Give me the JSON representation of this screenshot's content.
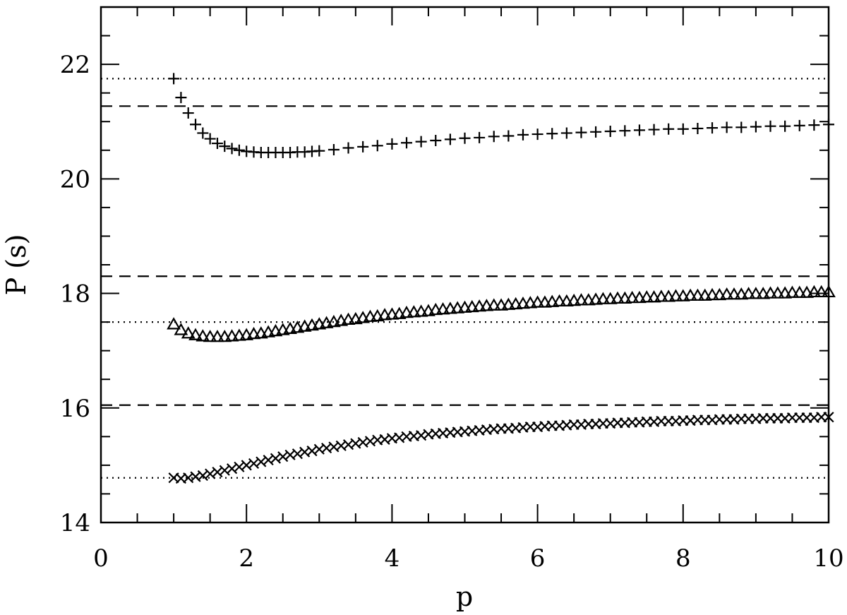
{
  "chart_data": {
    "type": "scatter",
    "title": "",
    "xlabel": "p",
    "ylabel": "P (s)",
    "xlim": [
      0,
      10
    ],
    "ylim": [
      14,
      23
    ],
    "xticks": [
      0,
      2,
      4,
      6,
      8,
      10
    ],
    "xtick_labels": [
      "0",
      "2",
      "4",
      "6",
      "8",
      "10"
    ],
    "yticks": [
      14,
      16,
      18,
      20,
      22
    ],
    "ytick_labels": [
      "14",
      "16",
      "18",
      "20",
      "22"
    ],
    "grid": false,
    "legend": "none",
    "reference_lines": [
      {
        "style": "dotted",
        "y": 21.75
      },
      {
        "style": "dashed",
        "y": 21.27
      },
      {
        "style": "dashed",
        "y": 18.3
      },
      {
        "style": "dotted",
        "y": 17.5
      },
      {
        "style": "dashed",
        "y": 16.05
      },
      {
        "style": "dotted",
        "y": 14.78
      }
    ],
    "series": [
      {
        "marker": "plus",
        "x": [
          1.0,
          1.1,
          1.2,
          1.3,
          1.4,
          1.5,
          1.6,
          1.7,
          1.8,
          1.9,
          2.0,
          2.1,
          2.2,
          2.3,
          2.4,
          2.5,
          2.6,
          2.7,
          2.8,
          2.9,
          3.0,
          3.2,
          3.4,
          3.6,
          3.8,
          4.0,
          4.2,
          4.4,
          4.6,
          4.8,
          5.0,
          5.2,
          5.4,
          5.6,
          5.8,
          6.0,
          6.2,
          6.4,
          6.6,
          6.8,
          7.0,
          7.2,
          7.4,
          7.6,
          7.8,
          8.0,
          8.2,
          8.4,
          8.6,
          8.8,
          9.0,
          9.2,
          9.4,
          9.6,
          9.8,
          10.0
        ],
        "y": [
          21.75,
          21.42,
          21.15,
          20.95,
          20.8,
          20.7,
          20.62,
          20.57,
          20.53,
          20.5,
          20.48,
          20.47,
          20.46,
          20.46,
          20.46,
          20.46,
          20.46,
          20.47,
          20.47,
          20.48,
          20.49,
          20.51,
          20.54,
          20.56,
          20.58,
          20.61,
          20.63,
          20.65,
          20.67,
          20.69,
          20.71,
          20.72,
          20.74,
          20.75,
          20.77,
          20.78,
          20.79,
          20.8,
          20.81,
          20.82,
          20.83,
          20.84,
          20.85,
          20.86,
          20.87,
          20.87,
          20.88,
          20.89,
          20.9,
          20.9,
          20.91,
          20.92,
          20.92,
          20.93,
          20.94,
          20.95
        ]
      },
      {
        "marker": "triangle",
        "x": [
          1.0,
          1.1,
          1.2,
          1.3,
          1.4,
          1.5,
          1.6,
          1.7,
          1.8,
          1.9,
          2.0,
          2.1,
          2.2,
          2.3,
          2.4,
          2.5,
          2.6,
          2.7,
          2.8,
          2.9,
          3.0,
          3.1,
          3.2,
          3.3,
          3.4,
          3.5,
          3.6,
          3.7,
          3.8,
          3.9,
          4.0,
          4.1,
          4.2,
          4.3,
          4.4,
          4.5,
          4.6,
          4.7,
          4.8,
          4.9,
          5.0,
          5.1,
          5.2,
          5.3,
          5.4,
          5.5,
          5.6,
          5.7,
          5.8,
          5.9,
          6.0,
          6.1,
          6.2,
          6.3,
          6.4,
          6.5,
          6.6,
          6.7,
          6.8,
          6.9,
          7.0,
          7.1,
          7.2,
          7.3,
          7.4,
          7.5,
          7.6,
          7.7,
          7.8,
          7.9,
          8.0,
          8.1,
          8.2,
          8.3,
          8.4,
          8.5,
          8.6,
          8.7,
          8.8,
          8.9,
          9.0,
          9.1,
          9.2,
          9.3,
          9.4,
          9.5,
          9.6,
          9.7,
          9.8,
          9.9,
          10.0
        ],
        "y": [
          17.46,
          17.36,
          17.3,
          17.27,
          17.25,
          17.24,
          17.24,
          17.24,
          17.25,
          17.26,
          17.27,
          17.29,
          17.3,
          17.32,
          17.34,
          17.36,
          17.38,
          17.4,
          17.42,
          17.44,
          17.46,
          17.48,
          17.5,
          17.52,
          17.54,
          17.55,
          17.57,
          17.59,
          17.6,
          17.62,
          17.63,
          17.64,
          17.66,
          17.67,
          17.68,
          17.69,
          17.71,
          17.72,
          17.73,
          17.74,
          17.75,
          17.76,
          17.77,
          17.78,
          17.79,
          17.79,
          17.8,
          17.81,
          17.82,
          17.83,
          17.84,
          17.84,
          17.85,
          17.86,
          17.86,
          17.87,
          17.88,
          17.88,
          17.89,
          17.9,
          17.9,
          17.91,
          17.91,
          17.92,
          17.92,
          17.93,
          17.93,
          17.94,
          17.94,
          17.95,
          17.95,
          17.96,
          17.96,
          17.96,
          17.97,
          17.97,
          17.98,
          17.98,
          17.98,
          17.99,
          17.99,
          17.99,
          18.0,
          18.0,
          18.0,
          18.01,
          18.01,
          18.01,
          18.02,
          18.02,
          18.02
        ]
      },
      {
        "marker": "cross",
        "x": [
          1.0,
          1.1,
          1.2,
          1.3,
          1.4,
          1.5,
          1.6,
          1.7,
          1.8,
          1.9,
          2.0,
          2.1,
          2.2,
          2.3,
          2.4,
          2.5,
          2.6,
          2.7,
          2.8,
          2.9,
          3.0,
          3.1,
          3.2,
          3.3,
          3.4,
          3.5,
          3.6,
          3.7,
          3.8,
          3.9,
          4.0,
          4.1,
          4.2,
          4.3,
          4.4,
          4.5,
          4.6,
          4.7,
          4.8,
          4.9,
          5.0,
          5.1,
          5.2,
          5.3,
          5.4,
          5.5,
          5.6,
          5.7,
          5.8,
          5.9,
          6.0,
          6.1,
          6.2,
          6.3,
          6.4,
          6.5,
          6.6,
          6.7,
          6.8,
          6.9,
          7.0,
          7.1,
          7.2,
          7.3,
          7.4,
          7.5,
          7.6,
          7.7,
          7.8,
          7.9,
          8.0,
          8.1,
          8.2,
          8.3,
          8.4,
          8.5,
          8.6,
          8.7,
          8.8,
          8.9,
          9.0,
          9.1,
          9.2,
          9.3,
          9.4,
          9.5,
          9.6,
          9.7,
          9.8,
          9.9,
          10.0
        ],
        "y": [
          14.78,
          14.77,
          14.78,
          14.8,
          14.82,
          14.85,
          14.88,
          14.91,
          14.94,
          14.97,
          15.0,
          15.03,
          15.06,
          15.09,
          15.12,
          15.15,
          15.18,
          15.2,
          15.23,
          15.25,
          15.28,
          15.3,
          15.32,
          15.34,
          15.36,
          15.38,
          15.4,
          15.42,
          15.44,
          15.45,
          15.47,
          15.48,
          15.5,
          15.51,
          15.52,
          15.54,
          15.55,
          15.56,
          15.57,
          15.58,
          15.59,
          15.6,
          15.61,
          15.62,
          15.63,
          15.64,
          15.64,
          15.65,
          15.66,
          15.67,
          15.67,
          15.68,
          15.69,
          15.69,
          15.7,
          15.71,
          15.71,
          15.72,
          15.72,
          15.73,
          15.73,
          15.74,
          15.74,
          15.75,
          15.75,
          15.76,
          15.76,
          15.77,
          15.77,
          15.77,
          15.78,
          15.78,
          15.79,
          15.79,
          15.79,
          15.8,
          15.8,
          15.8,
          15.81,
          15.81,
          15.81,
          15.82,
          15.82,
          15.82,
          15.82,
          15.83,
          15.83,
          15.83,
          15.83,
          15.84,
          15.84
        ]
      }
    ]
  }
}
